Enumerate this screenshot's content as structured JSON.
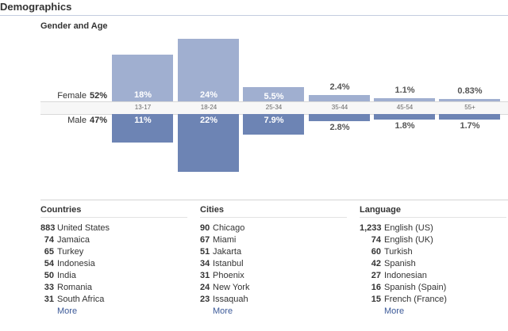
{
  "header": {
    "title": "Demographics"
  },
  "gender_age": {
    "title": "Gender and Age",
    "female": {
      "label": "Female",
      "value": "52%"
    },
    "male": {
      "label": "Male",
      "value": "47%"
    }
  },
  "chart_data": {
    "type": "bar",
    "categories": [
      "13-17",
      "18-24",
      "25-34",
      "35-44",
      "45-54",
      "55+"
    ],
    "series": [
      {
        "name": "Female",
        "values": [
          18,
          24,
          5.5,
          2.4,
          1.1,
          0.83
        ]
      },
      {
        "name": "Male",
        "values": [
          11,
          22,
          7.9,
          2.8,
          1.8,
          1.7
        ]
      }
    ],
    "labels": {
      "female": [
        "18%",
        "24%",
        "5.5%",
        "2.4%",
        "1.1%",
        "0.83%"
      ],
      "male": [
        "11%",
        "22%",
        "7.9%",
        "2.8%",
        "1.8%",
        "1.7%"
      ]
    },
    "colors": {
      "female": "#a0afd0",
      "male": "#6d84b4"
    }
  },
  "countries": {
    "title": "Countries",
    "items": [
      {
        "count": "883",
        "name": "United States"
      },
      {
        "count": "74",
        "name": "Jamaica"
      },
      {
        "count": "65",
        "name": "Turkey"
      },
      {
        "count": "54",
        "name": "Indonesia"
      },
      {
        "count": "50",
        "name": "India"
      },
      {
        "count": "33",
        "name": "Romania"
      },
      {
        "count": "31",
        "name": "South Africa"
      }
    ],
    "more_label": "More"
  },
  "cities": {
    "title": "Cities",
    "items": [
      {
        "count": "90",
        "name": "Chicago"
      },
      {
        "count": "67",
        "name": "Miami"
      },
      {
        "count": "51",
        "name": "Jakarta"
      },
      {
        "count": "34",
        "name": "Istanbul"
      },
      {
        "count": "31",
        "name": "Phoenix"
      },
      {
        "count": "24",
        "name": "New York"
      },
      {
        "count": "23",
        "name": "Issaquah"
      }
    ],
    "more_label": "More"
  },
  "language": {
    "title": "Language",
    "items": [
      {
        "count": "1,233",
        "name": "English (US)"
      },
      {
        "count": "74",
        "name": "English (UK)"
      },
      {
        "count": "60",
        "name": "Turkish"
      },
      {
        "count": "42",
        "name": "Spanish"
      },
      {
        "count": "27",
        "name": "Indonesian"
      },
      {
        "count": "16",
        "name": "Spanish (Spain)"
      },
      {
        "count": "15",
        "name": "French (France)"
      }
    ],
    "more_label": "More"
  }
}
